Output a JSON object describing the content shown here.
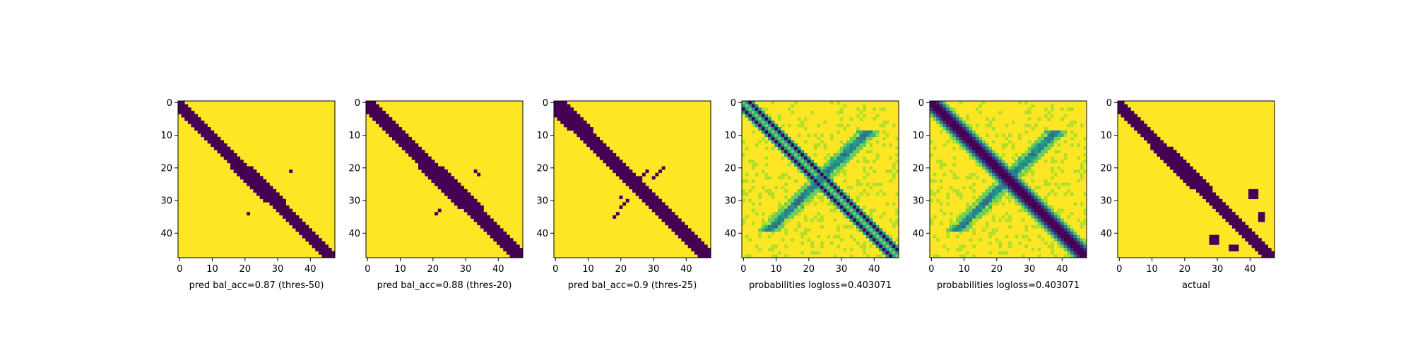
{
  "colors": {
    "background": "#fde725",
    "cmap": [
      "#fde725",
      "#b5de2b",
      "#6ece58",
      "#35b779",
      "#1f9e89",
      "#26828e",
      "#31688e",
      "#3e4989",
      "#482878",
      "#440154"
    ],
    "axis": "#000000"
  },
  "chart_data": [
    {
      "type": "heatmap",
      "title": "",
      "xlabel": "pred bal_acc=0.87 (thres-50)",
      "ylabel": "",
      "size": 48,
      "xticks": [
        0,
        10,
        20,
        30,
        40
      ],
      "yticks": [
        0,
        10,
        20,
        30,
        40
      ],
      "values_description_binary": true,
      "diagonal_band": {
        "below": 3,
        "above": 1,
        "wider_region": [
          20,
          30
        ],
        "wider_extra": 1
      },
      "extra_cells": [
        [
          21,
          34
        ],
        [
          34,
          21
        ]
      ]
    },
    {
      "type": "heatmap",
      "title": "",
      "xlabel": "pred bal_acc=0.88 (thres-20)",
      "ylabel": "",
      "size": 48,
      "xticks": [
        0,
        10,
        20,
        30,
        40
      ],
      "yticks": [
        0,
        10,
        20,
        30,
        40
      ],
      "diagonal_band": {
        "below": 3,
        "above": 2,
        "wider_region": [
          20,
          32
        ],
        "wider_extra": 1
      },
      "extra_cells": [
        [
          21,
          33
        ],
        [
          22,
          34
        ],
        [
          33,
          22
        ],
        [
          34,
          21
        ]
      ]
    },
    {
      "type": "heatmap",
      "title": "",
      "xlabel": "pred bal_acc=0.9 (thres-25)",
      "ylabel": "",
      "size": 48,
      "xticks": [
        0,
        10,
        20,
        30,
        40
      ],
      "yticks": [
        0,
        10,
        20,
        30,
        40
      ],
      "diagonal_band": {
        "below": 3,
        "above": 2,
        "wider_region": [
          0,
          8
        ],
        "wider_extra": 1
      },
      "extra_cells": [
        [
          21,
          28
        ],
        [
          22,
          27
        ],
        [
          23,
          26
        ],
        [
          20,
          33
        ],
        [
          21,
          32
        ],
        [
          22,
          31
        ],
        [
          23,
          30
        ],
        [
          32,
          20
        ],
        [
          31,
          21
        ],
        [
          30,
          22
        ],
        [
          34,
          19
        ],
        [
          35,
          18
        ],
        [
          29,
          20
        ]
      ]
    },
    {
      "type": "heatmap",
      "title": "",
      "xlabel": "probabilities logloss=0.403071",
      "ylabel": "",
      "size": 48,
      "xticks": [
        0,
        10,
        20,
        30,
        40
      ],
      "yticks": [
        0,
        10,
        20,
        30,
        40
      ],
      "continuous": true,
      "pattern": "offset-diagonals-and-antidiagonal"
    },
    {
      "type": "heatmap",
      "title": "",
      "xlabel": "probabilities logloss=0.403071",
      "ylabel": "",
      "size": 48,
      "xticks": [
        0,
        10,
        20,
        30,
        40
      ],
      "yticks": [
        0,
        10,
        20,
        30,
        40
      ],
      "continuous": true,
      "pattern": "thick-diagonal-and-antidiagonal"
    },
    {
      "type": "heatmap",
      "title": "",
      "xlabel": "actual",
      "ylabel": "",
      "size": 48,
      "xticks": [
        0,
        10,
        20,
        30,
        40
      ],
      "yticks": [
        0,
        10,
        20,
        30,
        40
      ],
      "diagonal_band": {
        "below": 3,
        "above": 1,
        "wider_region": [
          14,
          26
        ],
        "wider_extra": 1
      },
      "extra_blobs": [
        {
          "rows": [
            27,
            29
          ],
          "cols": [
            40,
            42
          ]
        },
        {
          "rows": [
            41,
            43
          ],
          "cols": [
            28,
            30
          ]
        },
        {
          "rows": [
            34,
            36
          ],
          "cols": [
            43,
            44
          ]
        },
        {
          "rows": [
            44,
            45
          ],
          "cols": [
            34,
            36
          ]
        }
      ]
    }
  ]
}
